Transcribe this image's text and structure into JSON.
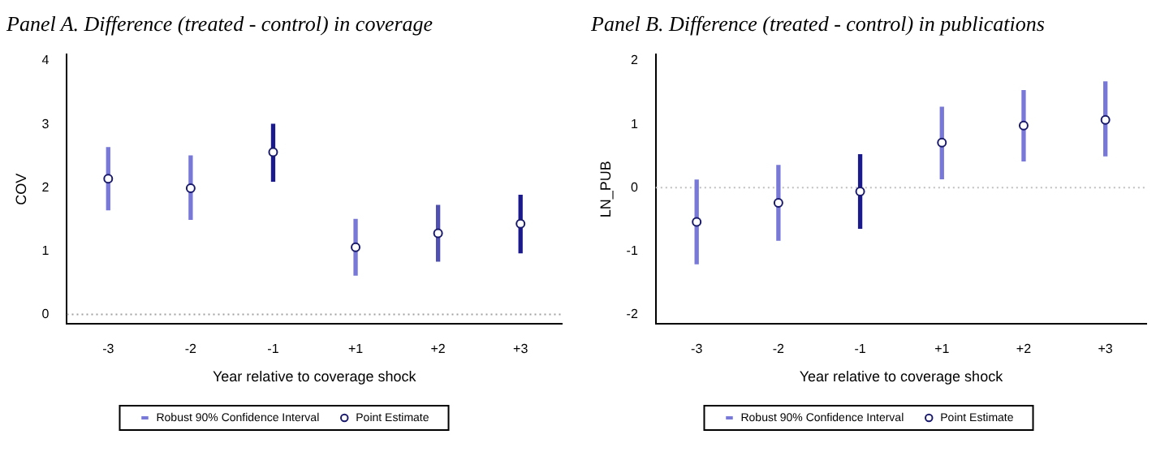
{
  "chart_data": [
    {
      "type": "scatter",
      "title": "Panel A. Difference (treated - control) in coverage",
      "xlabel": "Year relative to coverage shock",
      "ylabel": "COV",
      "categories": [
        "-3",
        "-2",
        "-1",
        "+1",
        "+2",
        "+3"
      ],
      "series": [
        {
          "name": "Robust 90% Confidence Interval",
          "type": "bar",
          "color": "#7878d8",
          "colors": [
            "#7878d8",
            "#7878d8",
            "#1a1a8c",
            "#7878d8",
            "#5050b0",
            "#1a1a8c"
          ],
          "base": [
            1.65,
            1.5,
            2.1,
            0.62,
            0.84,
            0.97
          ],
          "values": [
            0.98,
            1.0,
            0.9,
            0.88,
            0.88,
            0.91
          ]
        },
        {
          "name": "Point Estimate",
          "color": "#1a1a6c",
          "values": [
            2.14,
            1.99,
            2.56,
            1.06,
            1.28,
            1.43
          ]
        }
      ],
      "ylim": [
        -0.15,
        4.1
      ],
      "yticks": [
        0,
        1,
        2,
        3,
        4
      ],
      "marker": "circle",
      "legend": "bottom",
      "ref_lines": [
        {
          "axis": "y",
          "value": 0,
          "color": "#a0a0a0",
          "line_style": "dotted"
        }
      ]
    },
    {
      "type": "scatter",
      "title": "Panel B. Difference (treated - control) in publications",
      "xlabel": "Year relative to coverage shock",
      "ylabel": "LN_PUB",
      "categories": [
        "-3",
        "-2",
        "-1",
        "+1",
        "+2",
        "+3"
      ],
      "series": [
        {
          "name": "Robust 90% Confidence Interval",
          "type": "bar",
          "color": "#7878d8",
          "colors": [
            "#7878d8",
            "#7878d8",
            "#1a1a8c",
            "#7878d8",
            "#7878d8",
            "#7878d8"
          ],
          "base": [
            -1.2,
            -0.83,
            -0.64,
            0.14,
            0.42,
            0.5
          ],
          "values": [
            1.32,
            1.18,
            1.16,
            1.13,
            1.11,
            1.17
          ]
        },
        {
          "name": "Point Estimate",
          "color": "#1a1a6c",
          "values": [
            -0.54,
            -0.24,
            -0.06,
            0.71,
            0.98,
            1.07
          ]
        }
      ],
      "ylim": [
        -2.15,
        2.1
      ],
      "yticks": [
        -2,
        -1,
        0,
        1,
        2
      ],
      "marker": "circle",
      "legend": "bottom",
      "ref_lines": [
        {
          "axis": "y",
          "value": 0,
          "color": "#c0c0c0",
          "line_style": "dotted"
        }
      ]
    }
  ]
}
